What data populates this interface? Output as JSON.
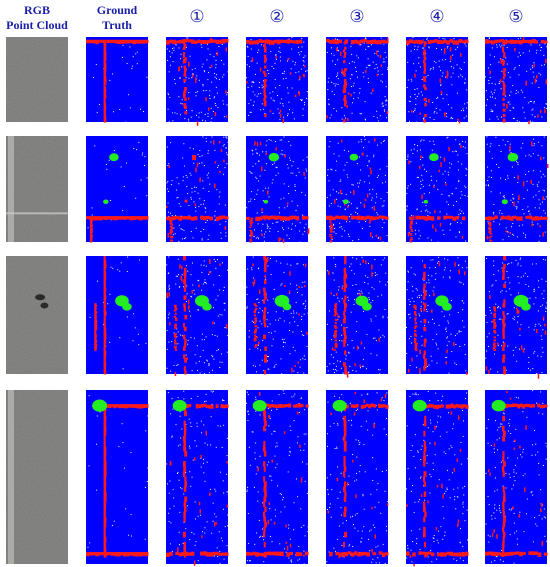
{
  "figure": {
    "columns": [
      {
        "key": "rgb",
        "label_lines": [
          "RGB",
          "Point Cloud"
        ]
      },
      {
        "key": "gt",
        "label_lines": [
          "Ground",
          "Truth"
        ]
      },
      {
        "key": "m1",
        "label_lines": [
          "①"
        ]
      },
      {
        "key": "m2",
        "label_lines": [
          "②"
        ]
      },
      {
        "key": "m3",
        "label_lines": [
          "③"
        ]
      },
      {
        "key": "m4",
        "label_lines": [
          "④"
        ]
      },
      {
        "key": "m5",
        "label_lines": [
          "⑤"
        ]
      }
    ],
    "rows": 4,
    "colors": {
      "header_text": "#1b1fa8",
      "background_class": "#0000ff",
      "crack_class": "#ff1a1a",
      "patch_class": "#22ee22",
      "rgb_base": "#8a8a88"
    },
    "legend_semantics": {
      "blue": "pavement background",
      "red": "crack",
      "green": "patch"
    }
  }
}
